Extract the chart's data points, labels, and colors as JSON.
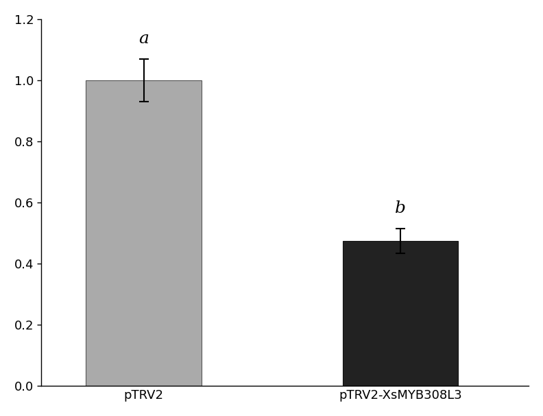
{
  "categories": [
    "pTRV2",
    "pTRV2-XsMYB308L3"
  ],
  "values": [
    1.0,
    0.475
  ],
  "errors": [
    0.07,
    0.04
  ],
  "bar_colors": [
    "#aaaaaa",
    "#222222"
  ],
  "bar_edge_colors": [
    "#555555",
    "#111111"
  ],
  "labels": [
    "a",
    "b"
  ],
  "ylim": [
    0,
    1.2
  ],
  "yticks": [
    0.0,
    0.2,
    0.4,
    0.6,
    0.8,
    1.0,
    1.2
  ],
  "background_color": "#ffffff",
  "label_fontsize": 18,
  "tick_fontsize": 13,
  "xticklabel_fontsize": 13,
  "error_capsize": 5,
  "error_linewidth": 1.5,
  "bar_width": 0.45
}
